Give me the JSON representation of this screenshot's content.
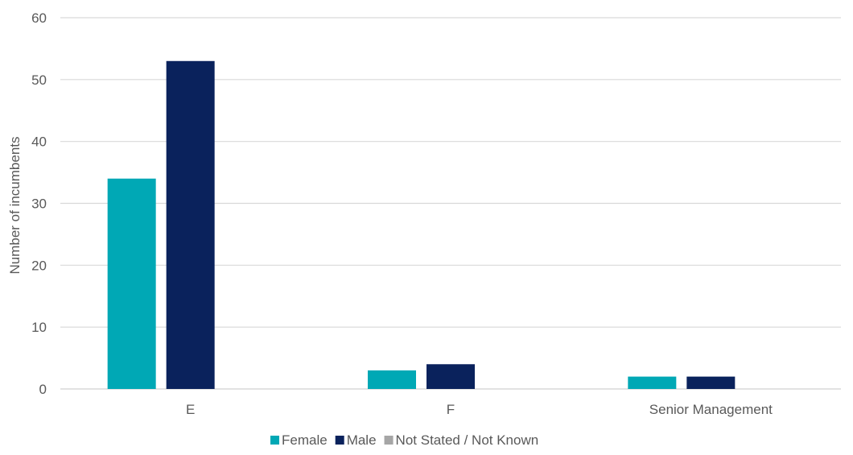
{
  "chart_data": {
    "type": "bar",
    "categories": [
      "E",
      "F",
      "Senior Management"
    ],
    "series": [
      {
        "name": "Female",
        "values": [
          34,
          3,
          2
        ],
        "color": "#00A8B5"
      },
      {
        "name": "Male",
        "values": [
          53,
          4,
          2
        ],
        "color": "#0A225C"
      },
      {
        "name": "Not Stated / Not Known",
        "values": [
          0,
          0,
          0
        ],
        "color": "#A6A6A6"
      }
    ],
    "ylabel": "Number of incumbents",
    "xlabel": "",
    "ylim": [
      0,
      60
    ],
    "yticks": [
      0,
      10,
      20,
      30,
      40,
      50,
      60
    ],
    "grid": true,
    "legend": "bottom"
  }
}
